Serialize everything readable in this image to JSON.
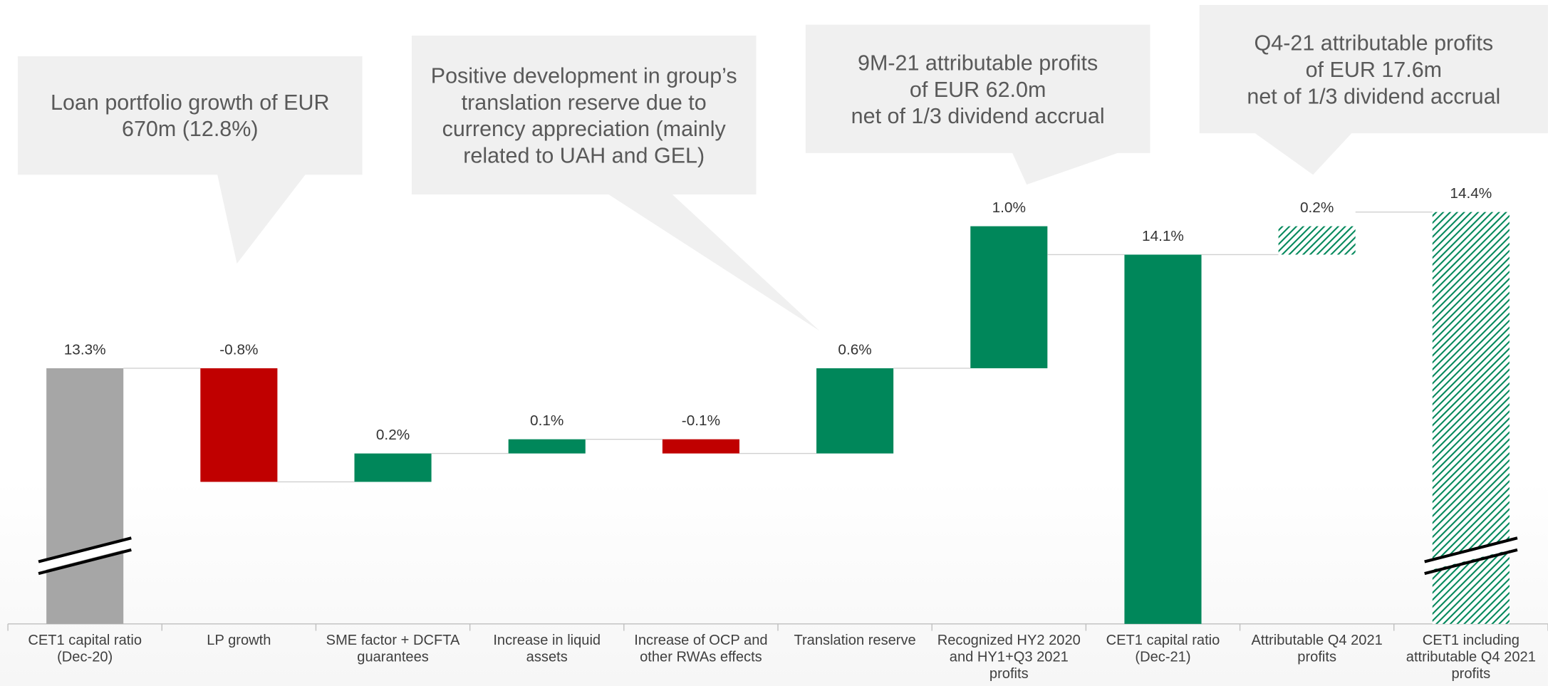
{
  "chart_data": {
    "type": "waterfall",
    "categories": [
      "CET1 capital ratio (Dec-20)",
      "LP growth",
      "SME factor + DCFTA guarantees",
      "Increase in liquid assets",
      "Increase of OCP and other RWAs effects",
      "Translation reserve",
      "Recognized HY2 2020 and HY1+Q3 2021 profits",
      "CET1 capital ratio (Dec-21)",
      "Attributable Q4 2021 profits",
      "CET1 including attributable Q4 2021 profits"
    ],
    "values": [
      13.3,
      -0.8,
      0.2,
      0.1,
      -0.1,
      0.6,
      1.0,
      14.1,
      0.2,
      14.4
    ],
    "value_labels": [
      "13.3%",
      "-0.8%",
      "0.2%",
      "0.1%",
      "-0.1%",
      "0.6%",
      "1.0%",
      "14.1%",
      "0.2%",
      "14.4%"
    ],
    "measure": [
      "total",
      "relative",
      "relative",
      "relative",
      "relative",
      "relative",
      "relative",
      "total",
      "relative",
      "total"
    ],
    "colors": [
      "#a6a6a6",
      "#c00000",
      "#00875a",
      "#00875a",
      "#c00000",
      "#00875a",
      "#00875a",
      "#00875a",
      "#00875a",
      "#00875a"
    ],
    "hatched": [
      false,
      false,
      false,
      false,
      false,
      false,
      false,
      false,
      true,
      true
    ],
    "breaks": [
      0,
      9
    ],
    "ylim": [
      11.5,
      14.6
    ],
    "annotations": [
      "Loan portfolio growth of EUR\n670m (12.8%)",
      "Positive development in group’s\ntranslation reserve due to\ncurrency appreciation (mainly\nrelated to UAH and GEL)",
      "9M-21 attributable profits\nof EUR 62.0m\nnet of 1/3 dividend accrual",
      "Q4-21 attributable profits\nof EUR 17.6m\nnet of 1/3 dividend accrual"
    ]
  }
}
